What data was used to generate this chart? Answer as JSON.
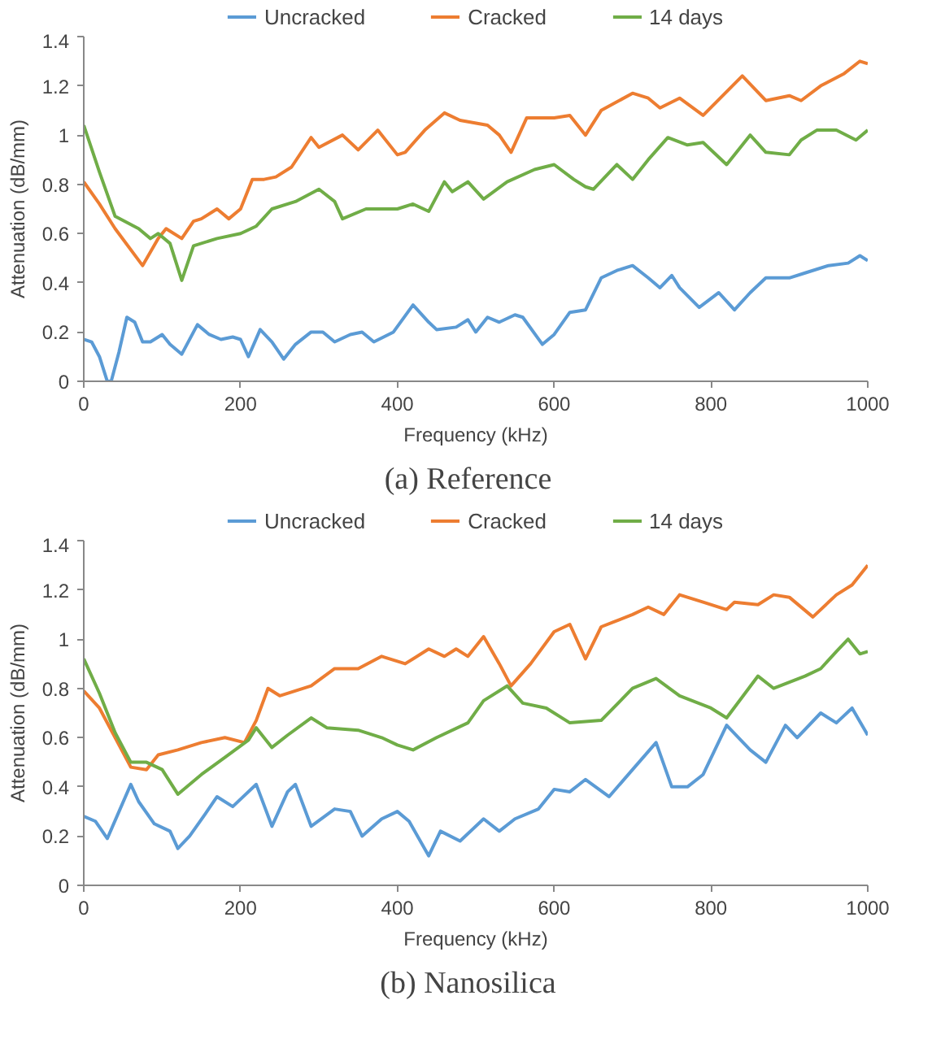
{
  "chart_data": [
    {
      "type": "line",
      "title": "(a)   Reference",
      "xlabel": "Frequency (kHz)",
      "ylabel": "Attenuation (dB/mm)",
      "xlim": [
        0,
        1000
      ],
      "ylim": [
        0,
        1.4
      ],
      "xticks": [
        0,
        200,
        400,
        600,
        800,
        1000
      ],
      "yticks": [
        0,
        0.2,
        0.4,
        0.6,
        0.8,
        1,
        1.2,
        1.4
      ],
      "grid": false,
      "legend": "top",
      "marker": "none",
      "line_style": "solid",
      "series": [
        {
          "name": "Uncracked",
          "color": "#5b9bd5",
          "x": [
            0,
            10,
            20,
            30,
            35,
            45,
            55,
            65,
            75,
            85,
            100,
            110,
            125,
            140,
            145,
            160,
            175,
            190,
            200,
            210,
            225,
            240,
            255,
            270,
            290,
            305,
            320,
            340,
            355,
            370,
            395,
            420,
            440,
            450,
            475,
            490,
            500,
            515,
            530,
            550,
            560,
            585,
            600,
            620,
            640,
            660,
            680,
            700,
            720,
            735,
            750,
            760,
            785,
            810,
            830,
            850,
            870,
            900,
            920,
            950,
            975,
            990,
            1000
          ],
          "values": [
            0.17,
            0.16,
            0.1,
            0.0,
            0.0,
            0.12,
            0.26,
            0.24,
            0.16,
            0.16,
            0.19,
            0.15,
            0.11,
            0.2,
            0.23,
            0.19,
            0.17,
            0.18,
            0.17,
            0.1,
            0.21,
            0.16,
            0.09,
            0.15,
            0.2,
            0.2,
            0.16,
            0.19,
            0.2,
            0.16,
            0.2,
            0.31,
            0.24,
            0.21,
            0.22,
            0.25,
            0.2,
            0.26,
            0.24,
            0.27,
            0.26,
            0.15,
            0.19,
            0.28,
            0.29,
            0.42,
            0.45,
            0.47,
            0.42,
            0.38,
            0.43,
            0.38,
            0.3,
            0.36,
            0.29,
            0.36,
            0.42,
            0.42,
            0.44,
            0.47,
            0.48,
            0.51,
            0.49
          ]
        },
        {
          "name": "Cracked",
          "color": "#ed7d31",
          "x": [
            0,
            20,
            40,
            75,
            95,
            105,
            125,
            140,
            150,
            170,
            185,
            200,
            215,
            230,
            245,
            265,
            290,
            300,
            330,
            350,
            375,
            400,
            410,
            435,
            460,
            480,
            515,
            530,
            545,
            565,
            600,
            620,
            640,
            660,
            700,
            720,
            735,
            760,
            790,
            815,
            840,
            870,
            900,
            915,
            940,
            970,
            990,
            1000
          ],
          "values": [
            0.81,
            0.72,
            0.62,
            0.47,
            0.58,
            0.62,
            0.58,
            0.65,
            0.66,
            0.7,
            0.66,
            0.7,
            0.82,
            0.82,
            0.83,
            0.87,
            0.99,
            0.95,
            1.0,
            0.94,
            1.02,
            0.92,
            0.93,
            1.02,
            1.09,
            1.06,
            1.04,
            1.0,
            0.93,
            1.07,
            1.07,
            1.08,
            1.0,
            1.1,
            1.17,
            1.15,
            1.11,
            1.15,
            1.08,
            1.16,
            1.24,
            1.14,
            1.16,
            1.14,
            1.2,
            1.25,
            1.3,
            1.29
          ]
        },
        {
          "name": "14 days",
          "color": "#70ad47",
          "x": [
            0,
            20,
            40,
            70,
            85,
            95,
            110,
            125,
            140,
            170,
            200,
            220,
            240,
            270,
            300,
            320,
            330,
            360,
            400,
            420,
            440,
            460,
            470,
            490,
            510,
            540,
            575,
            600,
            625,
            640,
            650,
            680,
            700,
            720,
            745,
            770,
            790,
            820,
            850,
            870,
            900,
            915,
            935,
            960,
            985,
            1000
          ],
          "values": [
            1.04,
            0.85,
            0.67,
            0.62,
            0.58,
            0.6,
            0.56,
            0.41,
            0.55,
            0.58,
            0.6,
            0.63,
            0.7,
            0.73,
            0.78,
            0.73,
            0.66,
            0.7,
            0.7,
            0.72,
            0.69,
            0.81,
            0.77,
            0.81,
            0.74,
            0.81,
            0.86,
            0.88,
            0.82,
            0.79,
            0.78,
            0.88,
            0.82,
            0.9,
            0.99,
            0.96,
            0.97,
            0.88,
            1.0,
            0.93,
            0.92,
            0.98,
            1.02,
            1.02,
            0.98,
            1.02
          ]
        }
      ]
    },
    {
      "type": "line",
      "title": "(b)   Nanosilica",
      "xlabel": "Frequency (kHz)",
      "ylabel": "Attenuation (dB/mm)",
      "xlim": [
        0,
        1000
      ],
      "ylim": [
        0,
        1.4
      ],
      "xticks": [
        0,
        200,
        400,
        600,
        800,
        1000
      ],
      "yticks": [
        0,
        0.2,
        0.4,
        0.6,
        0.8,
        1,
        1.2,
        1.4
      ],
      "grid": false,
      "legend": "top",
      "marker": "none",
      "line_style": "solid",
      "series": [
        {
          "name": "Uncracked",
          "color": "#5b9bd5",
          "x": [
            0,
            15,
            30,
            45,
            60,
            70,
            90,
            110,
            120,
            135,
            155,
            170,
            190,
            220,
            240,
            260,
            270,
            290,
            320,
            340,
            355,
            380,
            400,
            415,
            440,
            455,
            480,
            510,
            530,
            550,
            580,
            600,
            620,
            640,
            670,
            700,
            730,
            750,
            770,
            790,
            820,
            850,
            870,
            895,
            910,
            940,
            960,
            980,
            1000
          ],
          "values": [
            0.28,
            0.26,
            0.19,
            0.3,
            0.41,
            0.34,
            0.25,
            0.22,
            0.15,
            0.2,
            0.29,
            0.36,
            0.32,
            0.41,
            0.24,
            0.38,
            0.41,
            0.24,
            0.31,
            0.3,
            0.2,
            0.27,
            0.3,
            0.26,
            0.12,
            0.22,
            0.18,
            0.27,
            0.22,
            0.27,
            0.31,
            0.39,
            0.38,
            0.43,
            0.36,
            0.47,
            0.58,
            0.4,
            0.4,
            0.45,
            0.65,
            0.55,
            0.5,
            0.65,
            0.6,
            0.7,
            0.66,
            0.72,
            0.61
          ]
        },
        {
          "name": "Cracked",
          "color": "#ed7d31",
          "x": [
            0,
            20,
            40,
            60,
            80,
            95,
            120,
            150,
            180,
            205,
            220,
            235,
            250,
            290,
            320,
            350,
            380,
            410,
            440,
            460,
            475,
            490,
            510,
            530,
            545,
            570,
            600,
            620,
            640,
            660,
            700,
            720,
            740,
            760,
            790,
            820,
            830,
            860,
            880,
            900,
            930,
            960,
            980,
            1000
          ],
          "values": [
            0.79,
            0.72,
            0.6,
            0.48,
            0.47,
            0.53,
            0.55,
            0.58,
            0.6,
            0.58,
            0.67,
            0.8,
            0.77,
            0.81,
            0.88,
            0.88,
            0.93,
            0.9,
            0.96,
            0.93,
            0.96,
            0.93,
            1.01,
            0.9,
            0.81,
            0.9,
            1.03,
            1.06,
            0.92,
            1.05,
            1.1,
            1.13,
            1.1,
            1.18,
            1.15,
            1.12,
            1.15,
            1.14,
            1.18,
            1.17,
            1.09,
            1.18,
            1.22,
            1.3
          ]
        },
        {
          "name": "14 days",
          "color": "#70ad47",
          "x": [
            0,
            20,
            40,
            60,
            80,
            100,
            120,
            150,
            180,
            210,
            220,
            240,
            260,
            290,
            310,
            350,
            380,
            400,
            420,
            450,
            490,
            510,
            540,
            560,
            590,
            620,
            660,
            700,
            730,
            760,
            800,
            820,
            860,
            880,
            920,
            940,
            960,
            975,
            990,
            1000
          ],
          "values": [
            0.92,
            0.78,
            0.62,
            0.5,
            0.5,
            0.47,
            0.37,
            0.45,
            0.52,
            0.59,
            0.64,
            0.56,
            0.61,
            0.68,
            0.64,
            0.63,
            0.6,
            0.57,
            0.55,
            0.6,
            0.66,
            0.75,
            0.81,
            0.74,
            0.72,
            0.66,
            0.67,
            0.8,
            0.84,
            0.77,
            0.72,
            0.68,
            0.85,
            0.8,
            0.85,
            0.88,
            0.95,
            1.0,
            0.94,
            0.95
          ]
        }
      ]
    }
  ]
}
